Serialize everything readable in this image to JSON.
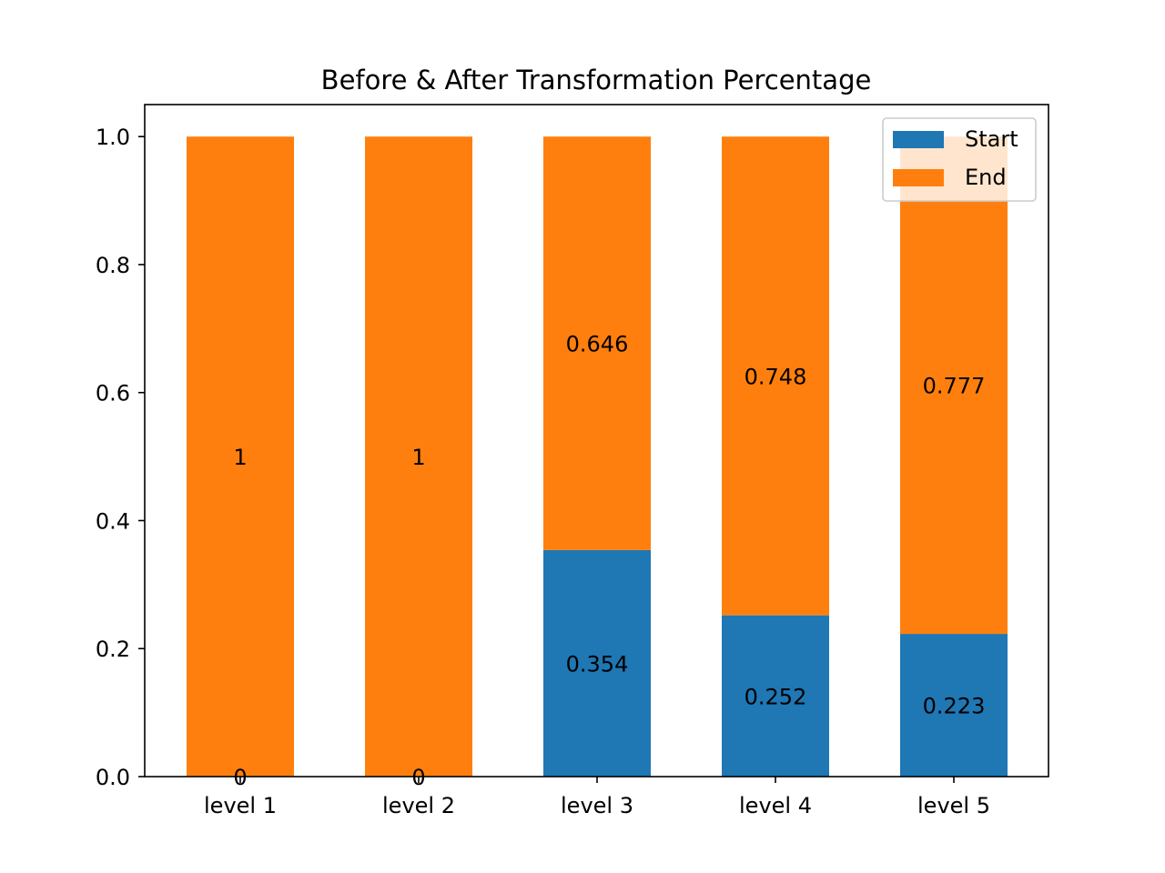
{
  "chart_data": {
    "type": "bar",
    "stacked": true,
    "title": "Before & After Transformation Percentage",
    "categories": [
      "level 1",
      "level 2",
      "level 3",
      "level 4",
      "level 5"
    ],
    "series": [
      {
        "name": "Start",
        "color": "#1f77b4",
        "values": [
          0,
          0,
          0.354,
          0.252,
          0.223
        ],
        "labels": [
          "0",
          "0",
          "0.354",
          "0.252",
          "0.223"
        ]
      },
      {
        "name": "End",
        "color": "#ff7f0e",
        "values": [
          1,
          1,
          0.646,
          0.748,
          0.777
        ],
        "labels": [
          "1",
          "1",
          "0.646",
          "0.748",
          "0.777"
        ]
      }
    ],
    "ylim": [
      0,
      1.05
    ],
    "yticks": [
      "0.0",
      "0.2",
      "0.4",
      "0.6",
      "0.8",
      "1.0"
    ],
    "grid": false,
    "legend": "top-right"
  }
}
